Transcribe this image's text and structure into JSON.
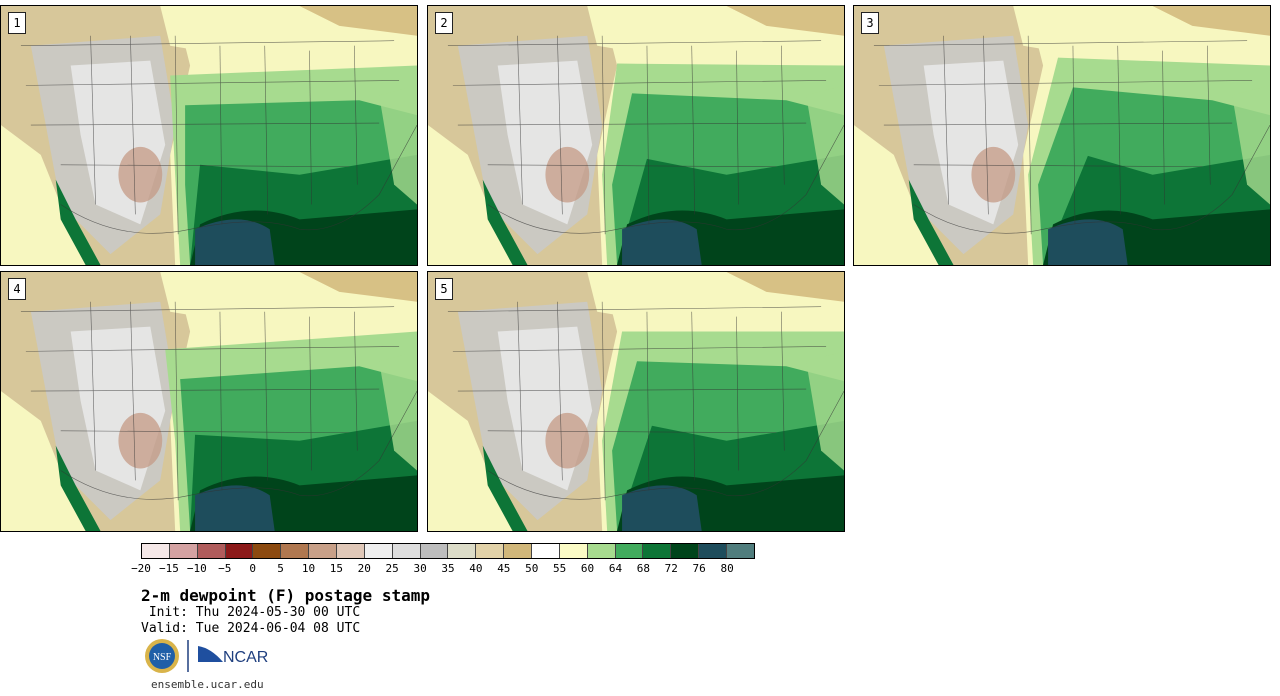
{
  "panels": [
    {
      "label": "1"
    },
    {
      "label": "2"
    },
    {
      "label": "3"
    },
    {
      "label": "4"
    },
    {
      "label": "5"
    }
  ],
  "colorbar": {
    "colors": [
      "#f5e8e8",
      "#d4a2a2",
      "#b05c5c",
      "#8c1a1a",
      "#8c4a10",
      "#b07850",
      "#c8a088",
      "#e0c8b8",
      "#efefef",
      "#dedede",
      "#bdbdbd",
      "#dcdcc8",
      "#e2d2a8",
      "#d1b77a",
      "#ffffff",
      "#fbfbc6",
      "#a7db8f",
      "#41ab5d",
      "#0d7537",
      "#00441b",
      "#1e4d5c",
      "#507d7d"
    ],
    "ticks": [
      "−20",
      "−15",
      "−10",
      "−5",
      "0",
      "5",
      "10",
      "15",
      "20",
      "25",
      "30",
      "35",
      "40",
      "45",
      "50",
      "55",
      "60",
      "64",
      "68",
      "72",
      "76",
      "80"
    ]
  },
  "title": "2-m dewpoint (F) postage stamp",
  "init": " Init: Thu 2024-05-30 00 UTC",
  "valid": "Valid: Tue 2024-06-04 08 UTC",
  "logos": {
    "nsf": "NSF",
    "ncar": "NCAR"
  },
  "footer": "ensemble.ucar.edu"
}
